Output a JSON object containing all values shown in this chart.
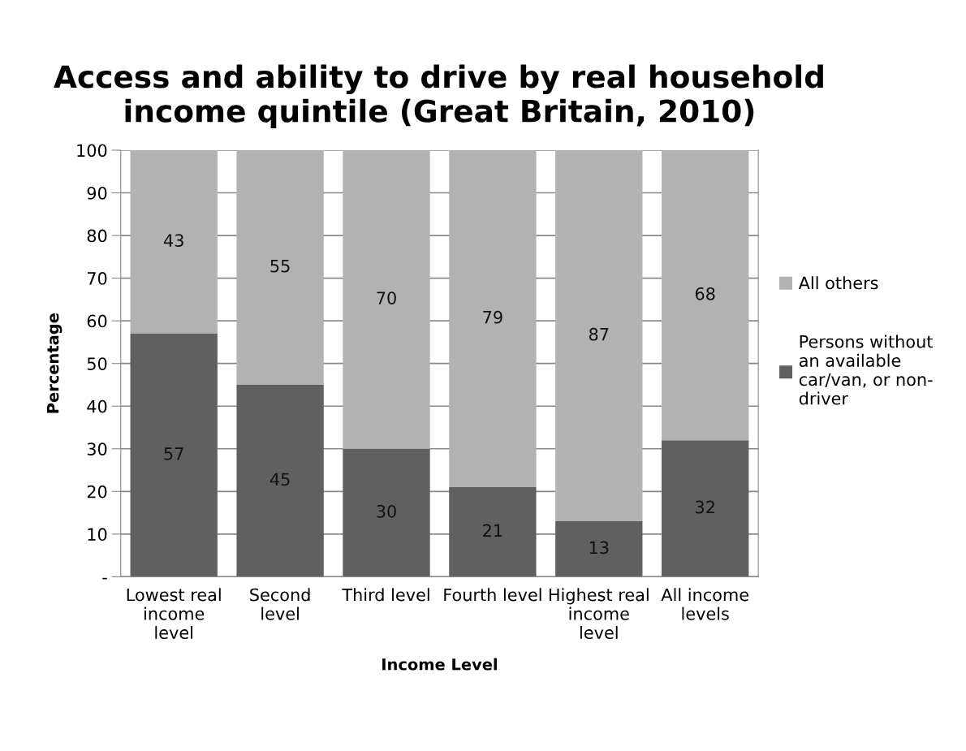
{
  "chart_data": {
    "type": "bar",
    "title": "Access and ability to drive by real household\nincome quintile (Great Britain, 2010)",
    "xlabel": "Income Level",
    "ylabel": "Percentage",
    "categories": [
      "Lowest real\nincome\nlevel",
      "Second\nlevel",
      "Third level",
      "Fourth level",
      "Highest real\nincome\nlevel",
      "All income\nlevels"
    ],
    "stacked": true,
    "series": [
      {
        "name": "Persons without\nan available\ncar/van, or non-\ndriver",
        "color": "#606060",
        "values": [
          57,
          45,
          30,
          21,
          13,
          32
        ]
      },
      {
        "name": "All others",
        "color": "#b2b2b2",
        "values": [
          43,
          55,
          70,
          79,
          87,
          68
        ]
      }
    ],
    "ylim": [
      0,
      100
    ],
    "yticks": [
      {
        "value": 0,
        "label": "-"
      },
      10,
      20,
      30,
      40,
      50,
      60,
      70,
      80,
      90,
      100
    ],
    "data_labels": true,
    "grid": "y",
    "legend": "right"
  }
}
